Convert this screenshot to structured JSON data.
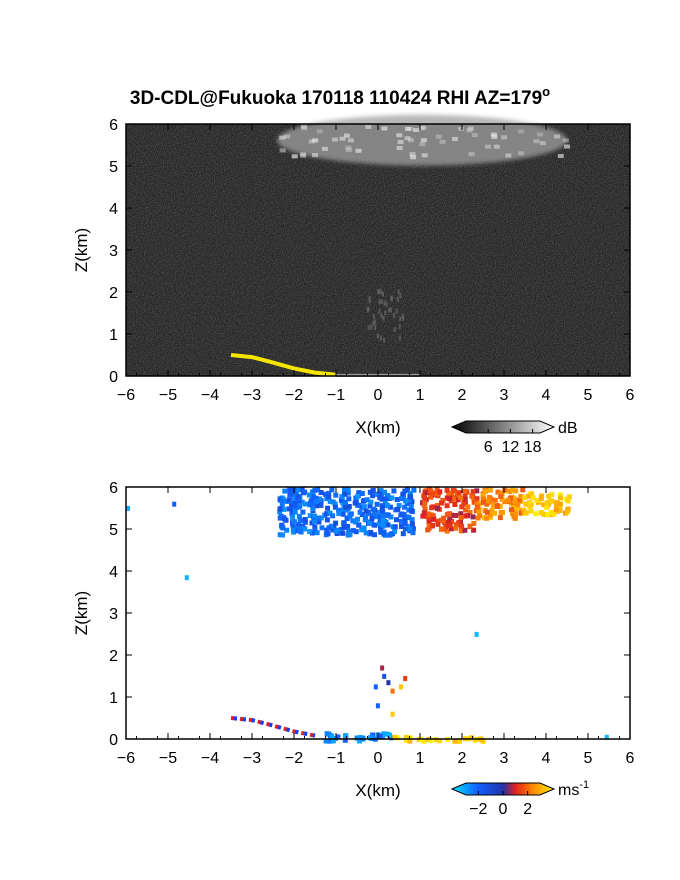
{
  "chart_data": [
    {
      "type": "heatmap",
      "title": "3D-CDL@Fukuoka 170118 110424 RHI AZ=179",
      "title_superscript": "o",
      "xlabel": "X(km)",
      "ylabel": "Z(km)",
      "xlim": [
        -6,
        6
      ],
      "ylim": [
        0,
        6
      ],
      "xticks": [
        "-6",
        "-5",
        "-4",
        "-3",
        "-2",
        "-1",
        "0",
        "1",
        "2",
        "3",
        "4",
        "5",
        "6"
      ],
      "yticks": [
        "0",
        "1",
        "2",
        "3",
        "4",
        "5",
        "6"
      ],
      "colorbar": {
        "unit": "dB",
        "ticks": [
          "6",
          "12",
          "18"
        ],
        "range": [
          0,
          20
        ],
        "colormap": "grayscale"
      },
      "features": [
        {
          "name": "cloud layer",
          "x_range": [
            -2.4,
            4.5
          ],
          "z_range": [
            4.9,
            6.0
          ],
          "intensity_db": 12
        },
        {
          "name": "precipitation streaks",
          "x_range": [
            -0.3,
            0.6
          ],
          "z_range": [
            0.9,
            2.1
          ],
          "intensity_db": 6
        },
        {
          "name": "ground clutter",
          "points": [
            [
              -3.5,
              0.5
            ],
            [
              -3.0,
              0.45
            ],
            [
              -2.5,
              0.32
            ],
            [
              -2.0,
              0.18
            ],
            [
              -1.5,
              0.08
            ],
            [
              -1.0,
              0.03
            ]
          ],
          "intensity_db": 20
        }
      ],
      "colors": {
        "background": "#222222",
        "clutter": "#f5e600"
      }
    },
    {
      "type": "heatmap",
      "xlabel": "X(km)",
      "ylabel": "Z(km)",
      "xlim": [
        -6,
        6
      ],
      "ylim": [
        0,
        6
      ],
      "xticks": [
        "-6",
        "-5",
        "-4",
        "-3",
        "-2",
        "-1",
        "0",
        "1",
        "2",
        "3",
        "4",
        "5",
        "6"
      ],
      "yticks": [
        "0",
        "1",
        "2",
        "3",
        "4",
        "5",
        "6"
      ],
      "colorbar": {
        "unit": "ms",
        "unit_superscript": "-1",
        "ticks": [
          "-2",
          "0",
          "2"
        ],
        "range": [
          -3,
          3
        ],
        "colormap": "cyan-blue-red-yellow"
      },
      "features": [
        {
          "name": "cloud velocities",
          "segments": [
            {
              "x_range": [
                -2.4,
                0.8
              ],
              "z_range": [
                4.9,
                6.0
              ],
              "velocity_ms": -1.5
            },
            {
              "x_range": [
                1.0,
                2.3
              ],
              "z_range": [
                5.0,
                6.0
              ],
              "velocity_ms": 1.0
            },
            {
              "x_range": [
                2.3,
                3.4
              ],
              "z_range": [
                5.3,
                6.0
              ],
              "velocity_ms": 1.8
            },
            {
              "x_range": [
                3.4,
                4.5
              ],
              "z_range": [
                5.4,
                5.9
              ],
              "velocity_ms": 2.5
            }
          ]
        },
        {
          "name": "isolated pixels",
          "points": [
            [
              -6.0,
              5.55,
              -2.5
            ],
            [
              -4.9,
              5.65,
              -1.5
            ],
            [
              -4.6,
              3.9,
              -2.5
            ],
            [
              2.3,
              2.55,
              -2.5
            ],
            [
              5.4,
              0.1,
              -2.5
            ]
          ]
        },
        {
          "name": "column pixels",
          "points": [
            [
              0.05,
              1.75,
              0.5
            ],
            [
              0.1,
              1.55,
              -1.0
            ],
            [
              -0.1,
              1.3,
              -1.5
            ],
            [
              0.2,
              1.4,
              0.0
            ],
            [
              0.5,
              1.3,
              2.5
            ],
            [
              0.3,
              1.2,
              1.5
            ],
            [
              -0.05,
              0.85,
              -1.5
            ],
            [
              0.3,
              0.65,
              2.5
            ],
            [
              0.6,
              1.5,
              1.0
            ]
          ]
        },
        {
          "name": "ground clutter",
          "points": [
            [
              -3.5,
              0.5
            ],
            [
              -3.0,
              0.45
            ],
            [
              -2.5,
              0.32
            ],
            [
              -2.0,
              0.18
            ],
            [
              -1.5,
              0.08
            ]
          ],
          "velocity_ms": 0.3
        },
        {
          "name": "near-ground",
          "segments": [
            {
              "x_range": [
                -1.3,
                0.3
              ],
              "z_range": [
                0.0,
                0.2
              ],
              "velocity_ms": -2.0
            },
            {
              "x_range": [
                0.3,
                2.5
              ],
              "z_range": [
                0.0,
                0.12
              ],
              "velocity_ms": 2.8
            }
          ]
        }
      ]
    }
  ]
}
